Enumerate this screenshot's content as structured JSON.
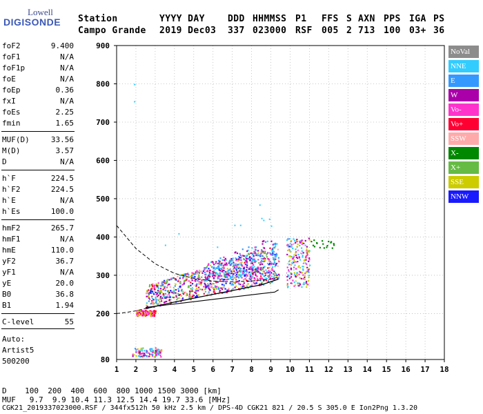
{
  "logo": {
    "line1": "Lowell",
    "line2": "DIGISONDE"
  },
  "header": {
    "labels": [
      {
        "text": "Station",
        "x": 113
      },
      {
        "text": "YYYY DAY",
        "x": 231
      },
      {
        "text": "DDD",
        "x": 330
      },
      {
        "text": "HHMMSS",
        "x": 366
      },
      {
        "text": "P1",
        "x": 428
      },
      {
        "text": "FFS",
        "x": 466
      },
      {
        "text": "S",
        "x": 502
      },
      {
        "text": "AXN",
        "x": 519
      },
      {
        "text": "PPS",
        "x": 556
      },
      {
        "text": "IGA",
        "x": 593
      },
      {
        "text": "PS",
        "x": 628
      }
    ],
    "values": [
      {
        "text": "Campo Grande",
        "x": 113
      },
      {
        "text": "2019 Dec03",
        "x": 231
      },
      {
        "text": "337",
        "x": 330
      },
      {
        "text": "023000",
        "x": 366
      },
      {
        "text": "RSF",
        "x": 428
      },
      {
        "text": "005",
        "x": 466
      },
      {
        "text": "2",
        "x": 502
      },
      {
        "text": "713",
        "x": 519
      },
      {
        "text": "100",
        "x": 556
      },
      {
        "text": "03+",
        "x": 593
      },
      {
        "text": "36",
        "x": 628
      }
    ]
  },
  "params": [
    {
      "key": "foF2",
      "value": "9.400",
      "y": 59
    },
    {
      "key": "foF1",
      "value": "N/A",
      "y": 75
    },
    {
      "key": "foF1p",
      "value": "N/A",
      "y": 91
    },
    {
      "key": "foE",
      "value": "N/A",
      "y": 107
    },
    {
      "key": "foEp",
      "value": "0.36",
      "y": 123
    },
    {
      "key": "fxI",
      "value": "N/A",
      "y": 139
    },
    {
      "key": "foEs",
      "value": "2.25",
      "y": 155
    },
    {
      "key": "fmin",
      "value": "1.65",
      "y": 171
    },
    {
      "key": "MUF(D)",
      "value": "33.56",
      "y": 195
    },
    {
      "key": "M(D)",
      "value": "3.57",
      "y": 211
    },
    {
      "key": "D",
      "value": "N/A",
      "y": 227
    },
    {
      "key": "h`F",
      "value": "224.5",
      "y": 251
    },
    {
      "key": "h`F2",
      "value": "224.5",
      "y": 267
    },
    {
      "key": "h`E",
      "value": "N/A",
      "y": 283
    },
    {
      "key": "h`Es",
      "value": "100.0",
      "y": 299
    },
    {
      "key": "hmF2",
      "value": "265.7",
      "y": 323
    },
    {
      "key": "hmF1",
      "value": "N/A",
      "y": 339
    },
    {
      "key": "hmE",
      "value": "110.0",
      "y": 355
    },
    {
      "key": "yF2",
      "value": "36.7",
      "y": 371
    },
    {
      "key": "yF1",
      "value": "N/A",
      "y": 387
    },
    {
      "key": "yE",
      "value": "20.0",
      "y": 403
    },
    {
      "key": "B0",
      "value": "36.8",
      "y": 419
    },
    {
      "key": "B1",
      "value": "1.94",
      "y": 435
    },
    {
      "key": "C-level",
      "value": "55",
      "y": 459
    }
  ],
  "autoscale": {
    "line1": "Auto:",
    "line2": "Artist5",
    "line3": "500200"
  },
  "legend": [
    {
      "label": "NoVal",
      "color": "#8c8c8c"
    },
    {
      "label": "NNE",
      "color": "#33ccff"
    },
    {
      "label": "E",
      "color": "#3399ff"
    },
    {
      "label": "W",
      "color": "#aa00aa"
    },
    {
      "label": "Vo-",
      "color": "#ff33cc"
    },
    {
      "label": "Vo+",
      "color": "#ff0033"
    },
    {
      "label": "SSW",
      "color": "#ffaaaa"
    },
    {
      "label": "X-",
      "color": "#008800"
    },
    {
      "label": "X+",
      "color": "#66bb44"
    },
    {
      "label": "SSE",
      "color": "#cccc00"
    },
    {
      "label": "NNW",
      "color": "#1a1aff"
    }
  ],
  "chart_data": {
    "type": "scatter",
    "xlabel": "",
    "ylabel": "",
    "xlim": [
      1,
      18
    ],
    "ylim": [
      80,
      900
    ],
    "x_ticks": [
      1,
      2,
      3,
      4,
      5,
      6,
      7,
      8,
      9,
      10,
      11,
      12,
      13,
      14,
      15,
      16,
      17,
      18
    ],
    "y_ticks": [
      200,
      300,
      400,
      500,
      600,
      700,
      800,
      900
    ],
    "y_tick_bottom_label": "80",
    "grid": true,
    "clusters": [
      {
        "name": "Es layer",
        "xrange": [
          1.8,
          3.3
        ],
        "yrange": [
          88,
          112
        ],
        "colors": [
          "#3399ff",
          "#33ccff",
          "#ff33cc",
          "#cccc00",
          "#aa00aa"
        ]
      },
      {
        "name": "F trace low",
        "xrange": [
          2.0,
          3.0
        ],
        "yrange": [
          195,
          210
        ],
        "colors": [
          "#cccc00",
          "#ff33cc",
          "#ff0033"
        ]
      },
      {
        "name": "F layer main",
        "xrange": [
          2.5,
          9.4
        ],
        "yrange": [
          215,
          330
        ],
        "colors": [
          "#ff33cc",
          "#ff0033",
          "#aa00aa",
          "#cccc00",
          "#3399ff",
          "#33ccff",
          "#ffaaaa",
          "#66bb44",
          "#1a1aff"
        ]
      },
      {
        "name": "F layer upper",
        "xrange": [
          5.5,
          9.3
        ],
        "yrange": [
          290,
          400
        ],
        "colors": [
          "#aa00aa",
          "#ff33cc",
          "#33ccff",
          "#3399ff"
        ]
      },
      {
        "name": "F spread",
        "xrange": [
          9.8,
          11.0
        ],
        "yrange": [
          270,
          400
        ],
        "colors": [
          "#ff33cc",
          "#aa00aa",
          "#33ccff",
          "#cccc00",
          "#ffffff"
        ]
      },
      {
        "name": "X trace",
        "xrange": [
          11.0,
          12.3
        ],
        "yrange": [
          372,
          395
        ],
        "colors": [
          "#008800"
        ]
      }
    ],
    "profile_dashed": [
      [
        1.0,
        430
      ],
      [
        1.5,
        400
      ],
      [
        2.0,
        370
      ],
      [
        3.0,
        330
      ],
      [
        4.0,
        305
      ],
      [
        5.0,
        292
      ],
      [
        6.0,
        285
      ],
      [
        7.0,
        283
      ],
      [
        8.0,
        285
      ],
      [
        9.0,
        290
      ],
      [
        9.4,
        295
      ]
    ],
    "profile_lower_dashed": [
      [
        1.0,
        200
      ],
      [
        1.5,
        203
      ],
      [
        2.0,
        207
      ],
      [
        2.5,
        213
      ]
    ],
    "profile_solid": [
      [
        2.5,
        213
      ],
      [
        4.0,
        230
      ],
      [
        5.5,
        245
      ],
      [
        7.0,
        260
      ],
      [
        8.5,
        275
      ],
      [
        9.4,
        290
      ]
    ],
    "profile_base": [
      [
        2.5,
        216
      ],
      [
        4.5,
        228
      ],
      [
        6.5,
        240
      ],
      [
        8.5,
        252
      ],
      [
        9.2,
        256
      ],
      [
        9.4,
        262
      ]
    ]
  },
  "bottom": {
    "d_line": "D    100  200  400  600  800 1000 1500 3000 [km]",
    "muf_line": "MUF   9.7  9.9 10.4 11.3 12.5 14.4 19.7 33.6 [MHz]",
    "footer": "CGK21_2019337023000.RSF / 344fx512h 50 kHz 2.5 km / DPS-4D CGK21 821 / 20.5 S 305.0 E Ion2Png 1.3.20"
  }
}
